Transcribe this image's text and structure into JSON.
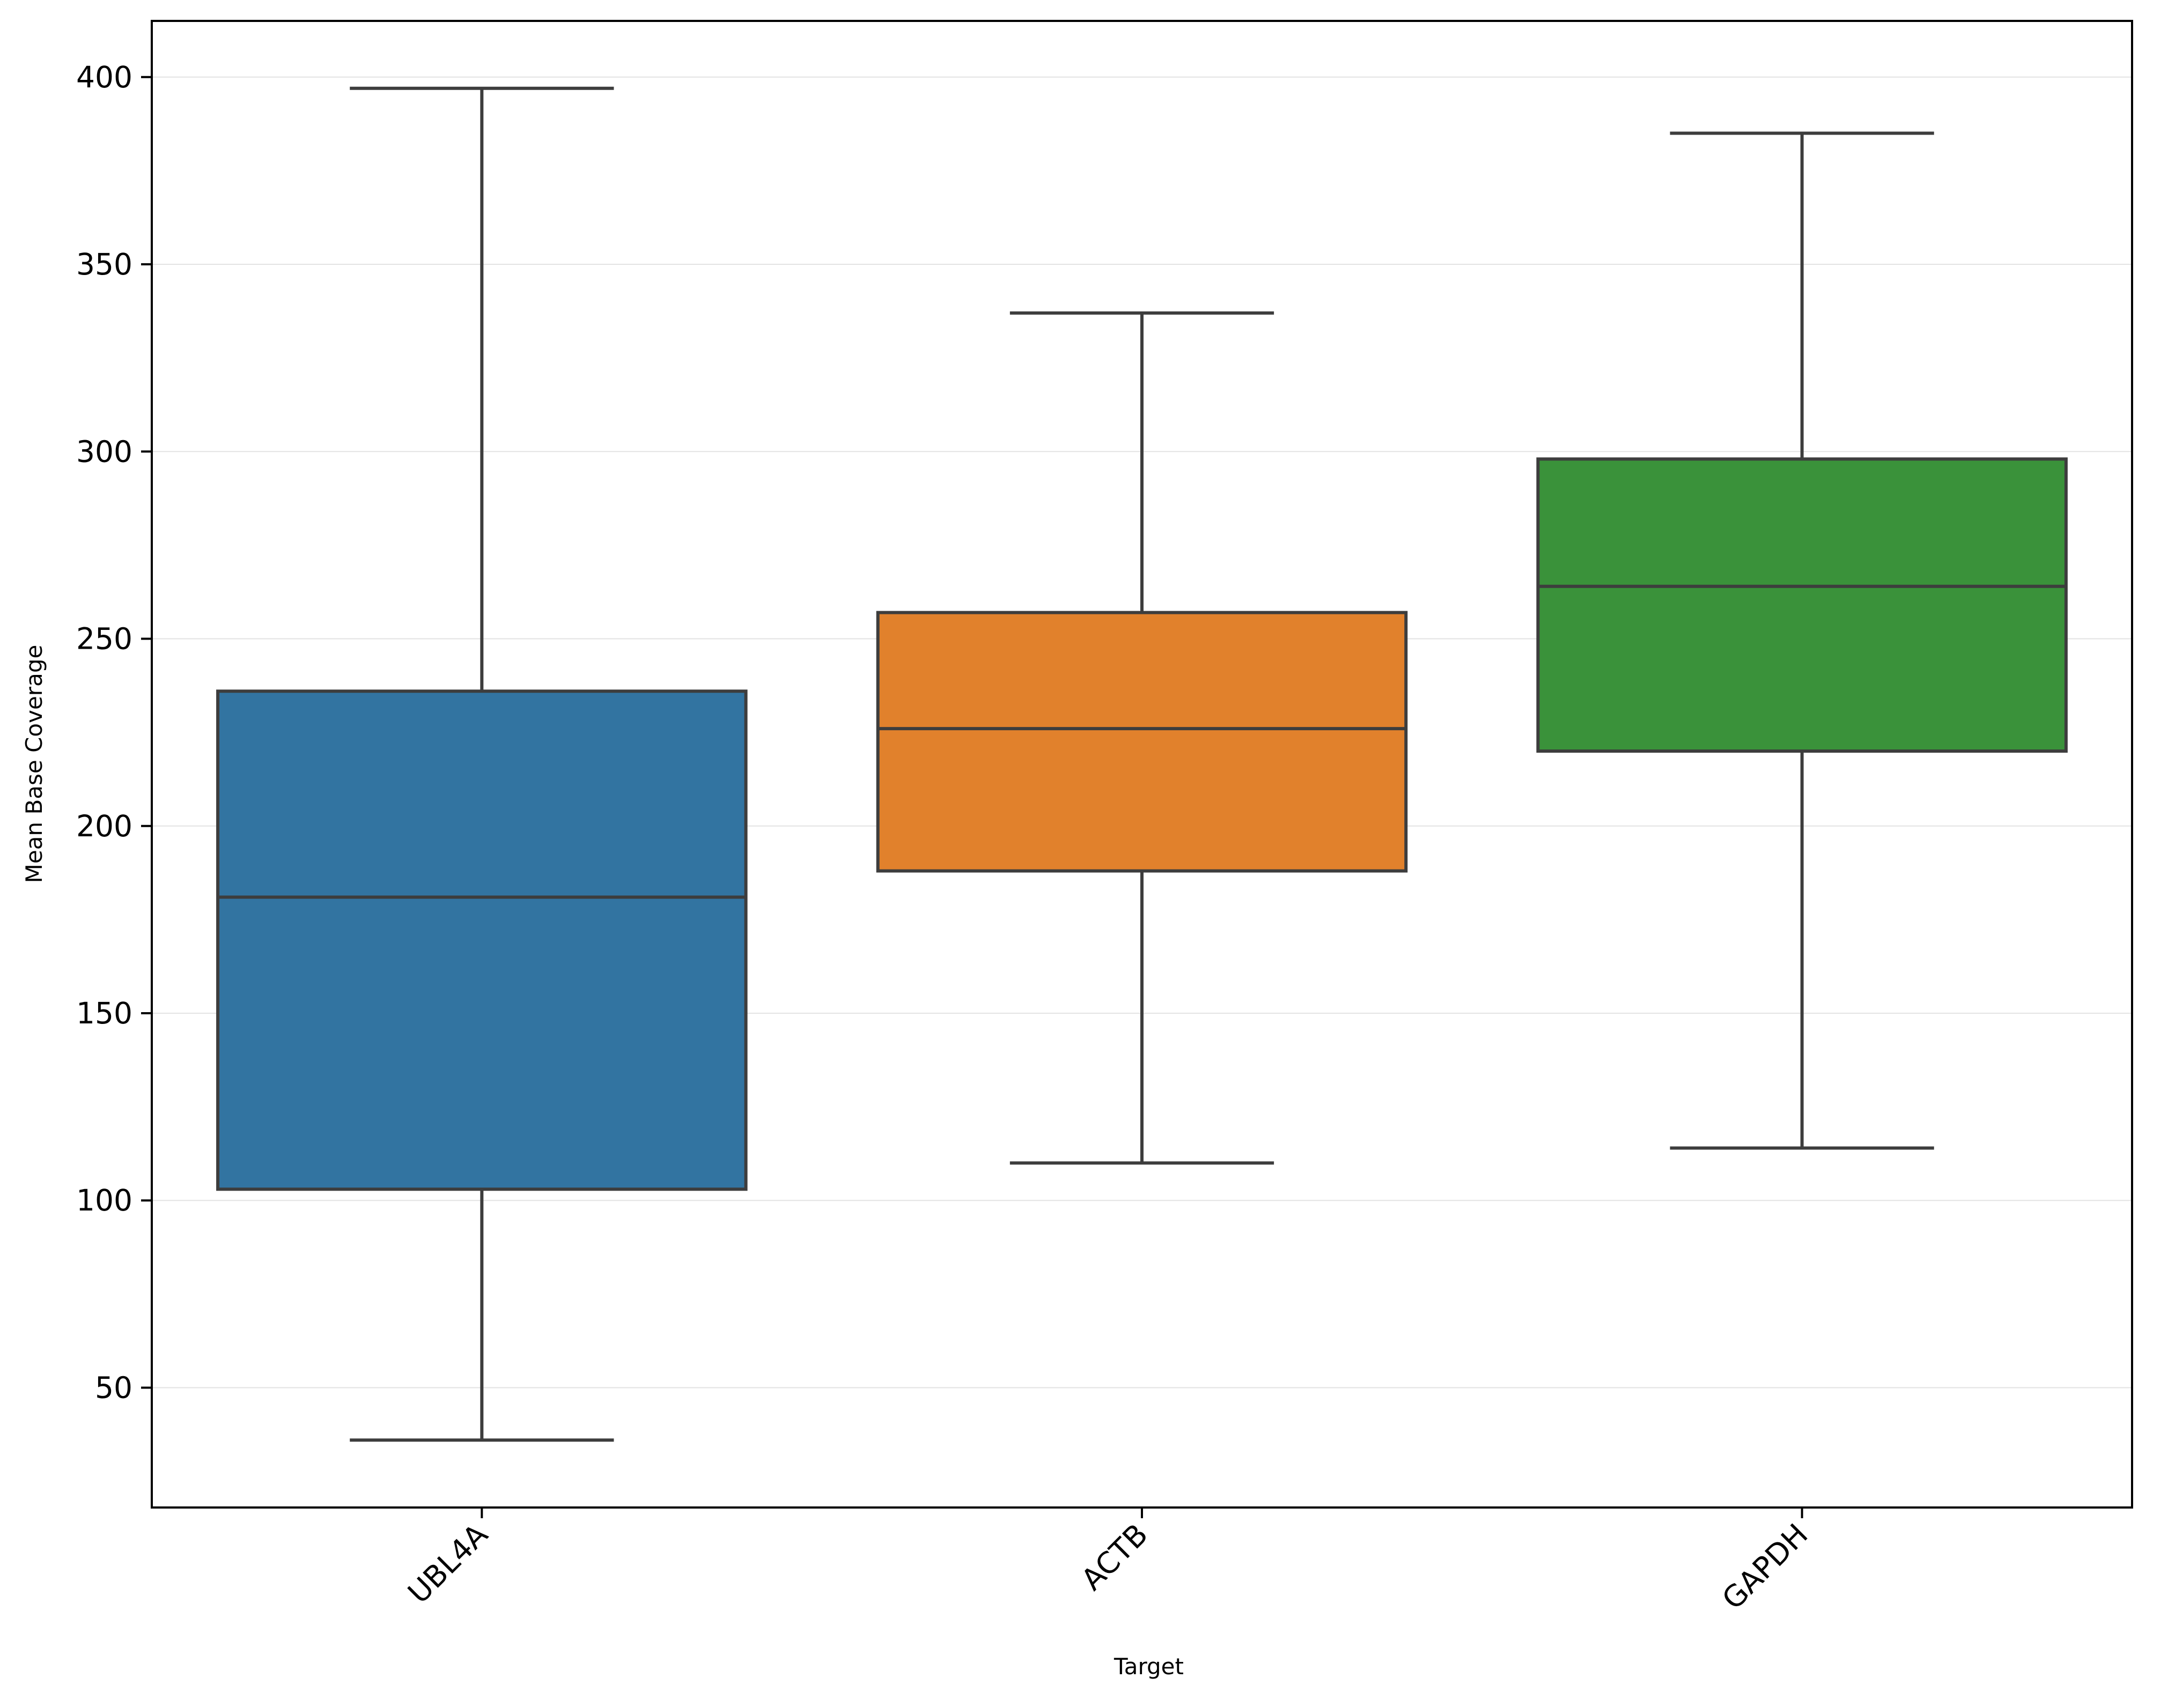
{
  "chart_data": {
    "type": "box",
    "title": "",
    "xlabel": "Target",
    "ylabel": "Mean Base Coverage",
    "categories": [
      "UBL4A",
      "ACTB",
      "GAPDH"
    ],
    "boxes": [
      {
        "name": "UBL4A",
        "whisker_low": 36,
        "q1": 103,
        "median": 181,
        "q3": 236,
        "whisker_high": 397
      },
      {
        "name": "ACTB",
        "whisker_low": 110,
        "q1": 188,
        "median": 226,
        "q3": 257,
        "whisker_high": 337
      },
      {
        "name": "GAPDH",
        "whisker_low": 114,
        "q1": 220,
        "median": 264,
        "q3": 298,
        "whisker_high": 385
      }
    ],
    "ylim": [
      18,
      415
    ],
    "yticks": [
      50,
      100,
      150,
      200,
      250,
      300,
      350,
      400
    ],
    "grid": "horizontal",
    "legend": "none",
    "colors": [
      "#3274a1",
      "#e1812c",
      "#3a923a"
    ],
    "edge_color": "#3d3d3d"
  }
}
